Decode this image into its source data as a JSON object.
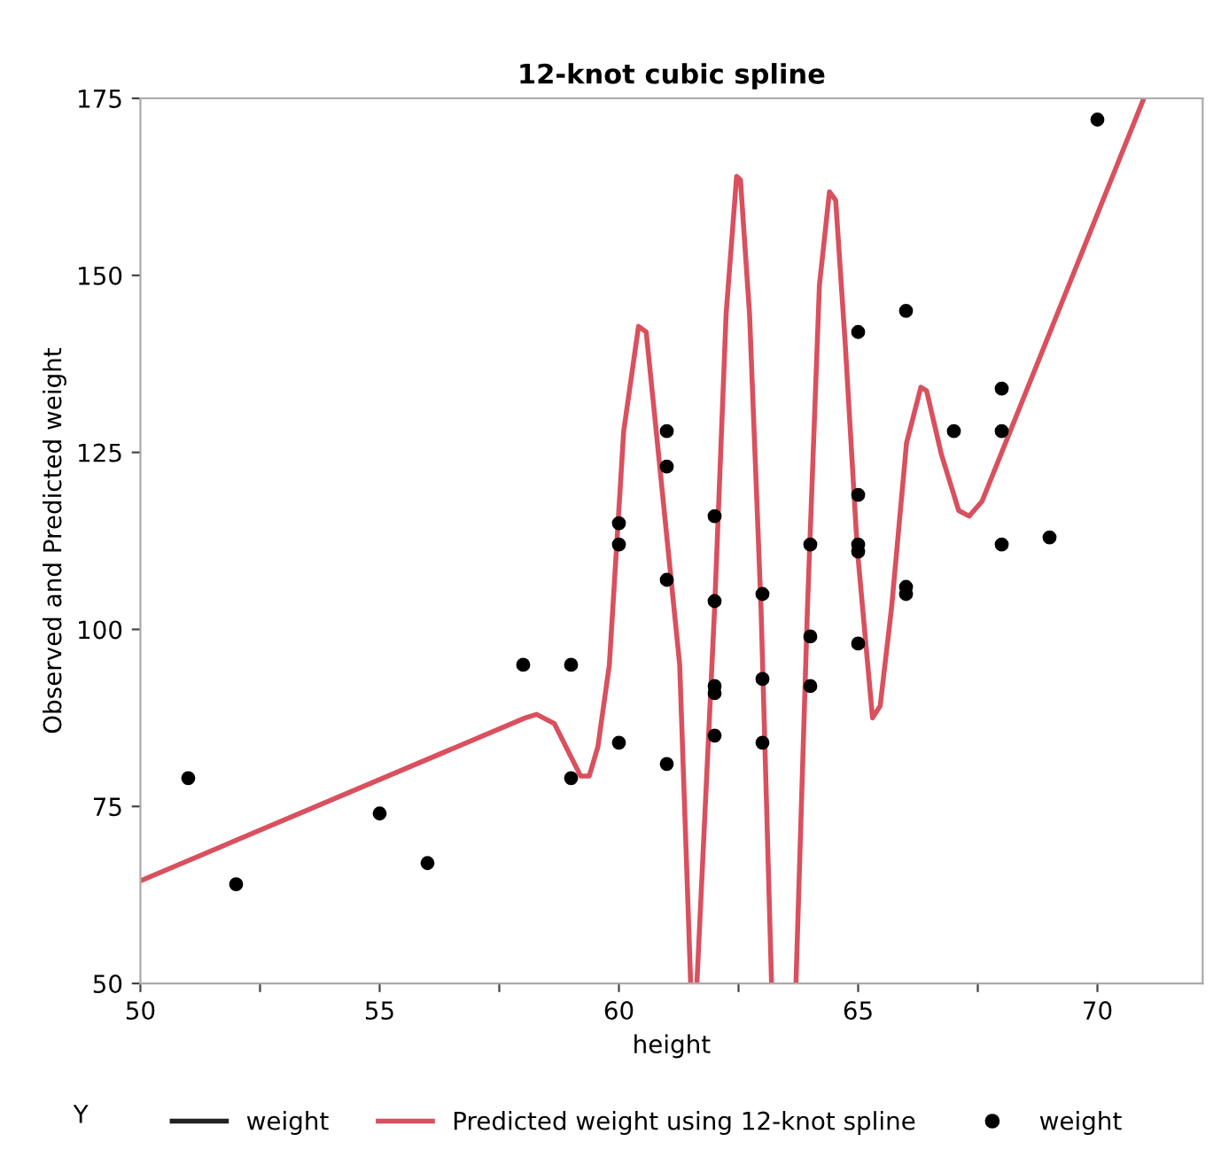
{
  "chart_data": {
    "type": "scatter",
    "title": "12-knot cubic spline",
    "xlabel": "height",
    "ylabel": "Observed and Predicted weight",
    "legend_title": "Y",
    "xlim": [
      50,
      72.2
    ],
    "ylim": [
      50,
      175
    ],
    "xticks": [
      50,
      {
        "value": 52.5,
        "label": null
      },
      55,
      {
        "value": 57.5,
        "label": null
      },
      60,
      {
        "value": 62.5,
        "label": null
      },
      65,
      {
        "value": 67.5,
        "label": null
      },
      70
    ],
    "yticks": [
      50,
      75,
      100,
      125,
      150,
      175
    ],
    "grid": false,
    "legend": "bottom",
    "series": [
      {
        "name": "weight",
        "type": "line",
        "color": "#222222",
        "line_style": "solid"
      },
      {
        "name": "Predicted weight using 12-knot spline",
        "type": "line",
        "color": "#d9505e",
        "line_style": "solid",
        "marker": "none",
        "x": [
          50,
          58.04,
          58.28,
          58.65,
          59.2,
          59.38,
          59.56,
          59.8,
          60.1,
          60.41,
          60.57,
          60.72,
          61.27,
          61.5,
          61.55,
          61.63,
          62.0,
          62.24,
          62.46,
          62.54,
          62.73,
          62.97,
          63.19,
          63.45,
          63.7,
          63.94,
          64.19,
          64.4,
          64.53,
          64.73,
          64.98,
          65.3,
          65.46,
          65.7,
          66.01,
          66.31,
          66.43,
          66.74,
          67.1,
          67.32,
          67.59,
          70.97
        ],
        "values": [
          64.5,
          87.5,
          88,
          86.7,
          79.3,
          79.3,
          83.4,
          95,
          128,
          142.8,
          142,
          132,
          95,
          50,
          null,
          50,
          103,
          144.5,
          164,
          163.5,
          144.5,
          103,
          50,
          null,
          50,
          103,
          148.6,
          161.8,
          160.6,
          140.3,
          111.5,
          87.5,
          89.2,
          103.2,
          126.3,
          134.2,
          133.7,
          124.7,
          116.8,
          116,
          118.1,
          175
        ]
      },
      {
        "name": "weight",
        "color": "#000000",
        "marker": "circle",
        "x": [
          51,
          52,
          55,
          56,
          58,
          59,
          59,
          60,
          60,
          60,
          61,
          61,
          61,
          61,
          62,
          62,
          62,
          62,
          62,
          63,
          63,
          63,
          64,
          64,
          64,
          65,
          65,
          65,
          65,
          65,
          66,
          66,
          66,
          67,
          68,
          68,
          68,
          69,
          70
        ],
        "values": [
          79,
          64,
          74,
          67,
          95,
          95,
          79,
          115,
          112,
          84,
          128,
          123,
          107,
          81,
          116,
          104,
          92,
          91,
          85,
          105,
          93,
          84,
          112,
          99,
          92,
          142,
          119,
          112,
          111,
          98,
          145,
          106,
          105,
          128,
          134,
          128,
          112,
          113,
          172
        ]
      }
    ]
  }
}
